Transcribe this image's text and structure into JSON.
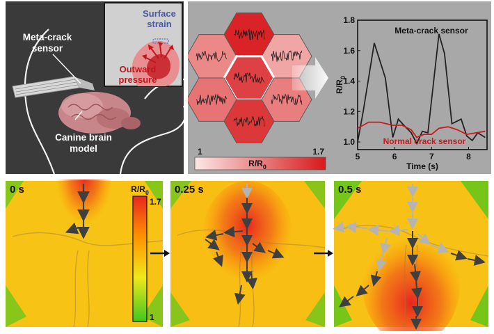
{
  "panel_a": {
    "sensor_label_line1": "Meta-crack",
    "sensor_label_line2": "sensor",
    "brain_label_line1": "Canine brain",
    "brain_label_line2": "model",
    "inset_surface_line1": "Surface",
    "inset_surface_line2": "strain",
    "inset_pressure_line1": "Outward",
    "inset_pressure_line2": "pressure",
    "colors": {
      "background": "#3a3a3a",
      "surface_text": "#4a5aa0",
      "pressure_text": "#c0171c"
    }
  },
  "panel_b": {
    "hex_fill_levels": [
      0.95,
      0.45,
      0.3,
      0.8,
      0.55,
      0.5,
      0.85
    ],
    "colorbar": {
      "min_label": "1",
      "max_label": "1.7",
      "axis_label_main": "R/R",
      "axis_label_sub": "0"
    },
    "colors": {
      "background": "#a8a8a8",
      "hex_light": "#fbe2e0",
      "hex_dark": "#d7191c"
    }
  },
  "chart_data": {
    "type": "line",
    "title": "",
    "xlabel": "Time (s)",
    "ylabel_main": "R/R",
    "ylabel_sub": "0",
    "xlim": [
      5,
      8.5
    ],
    "ylim": [
      0.95,
      1.8
    ],
    "xticks": [
      "5",
      "6",
      "7",
      "8"
    ],
    "xtick_values": [
      5,
      6,
      7,
      8
    ],
    "yticks": [
      "1.0",
      "1.2",
      "1.4",
      "1.6",
      "1.8"
    ],
    "ytick_values": [
      1.0,
      1.2,
      1.4,
      1.6,
      1.8
    ],
    "series": [
      {
        "name": "Meta-crack sensor",
        "color": "#222222",
        "x": [
          5.0,
          5.15,
          5.45,
          5.75,
          5.95,
          6.1,
          6.25,
          6.45,
          6.6,
          6.75,
          6.9,
          7.2,
          7.35,
          7.55,
          7.8,
          7.95,
          8.1,
          8.25,
          8.45
        ],
        "y": [
          1.0,
          1.2,
          1.65,
          1.42,
          1.03,
          1.15,
          1.11,
          1.06,
          0.99,
          1.07,
          1.06,
          1.71,
          1.58,
          1.12,
          1.15,
          1.04,
          1.01,
          1.06,
          1.03
        ]
      },
      {
        "name": "Normal crack sensor",
        "color": "#cc1a1a",
        "x": [
          5.0,
          5.3,
          5.6,
          5.95,
          6.2,
          6.45,
          6.6,
          6.8,
          7.0,
          7.2,
          7.45,
          7.7,
          7.95,
          8.2,
          8.45
        ],
        "y": [
          1.09,
          1.13,
          1.13,
          1.11,
          1.11,
          1.08,
          1.03,
          1.05,
          1.05,
          1.09,
          1.1,
          1.08,
          1.05,
          1.06,
          1.07
        ]
      }
    ]
  },
  "panel_c": {
    "colorbar": {
      "label_main": "R/R",
      "label_sub": "0",
      "max_label": "1.7",
      "min_label": "1"
    },
    "frames": [
      {
        "time_label": "0 s"
      },
      {
        "time_label": "0.25 s"
      },
      {
        "time_label": "0.5 s"
      }
    ],
    "colors": {
      "high": "#e8261e",
      "mid": "#ff8c00",
      "low_mid": "#e0e81a",
      "low": "#3ec81c",
      "arrow_dark": "#3f3f3f",
      "arrow_light": "#b4b4b4"
    }
  }
}
